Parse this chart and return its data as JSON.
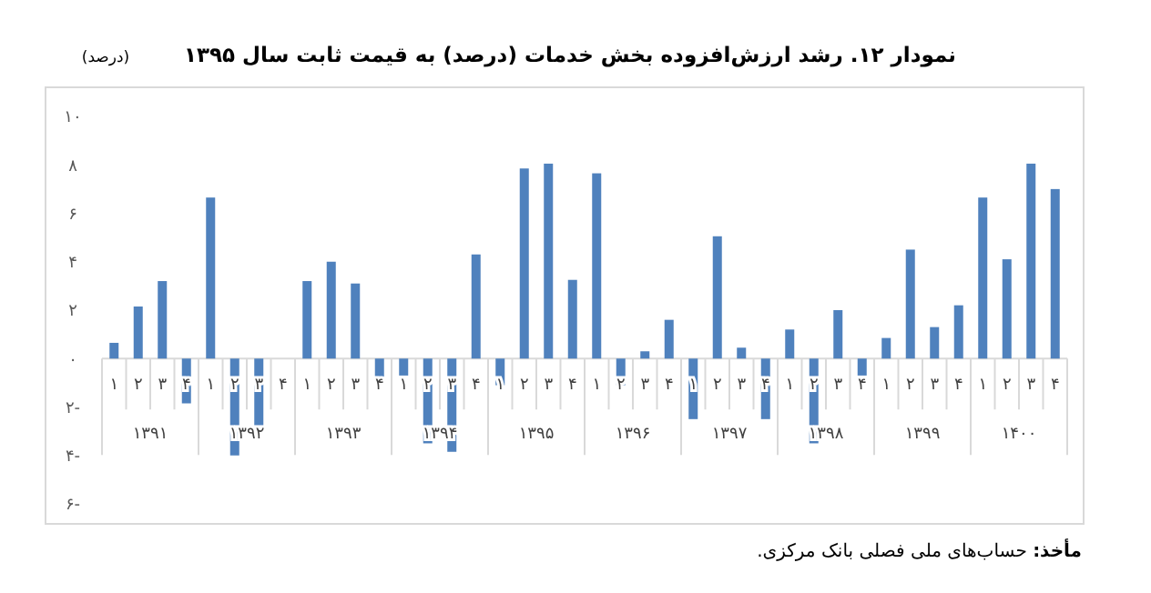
{
  "chart_data": {
    "type": "bar",
    "title": "نمودار ۱۲. رشد ارزش‌افزوده بخش خدمات (درصد) به قیمت ثابت سال ۱۳۹۵",
    "ylabel": "(درصد)",
    "categories": [
      "۱",
      "۲",
      "۳",
      "۴",
      "۱",
      "۲",
      "۳",
      "۴",
      "۱",
      "۲",
      "۳",
      "۴",
      "۱",
      "۲",
      "۳",
      "۴",
      "۱",
      "۲",
      "۳",
      "۴",
      "۱",
      "۲",
      "۳",
      "۴",
      "۱",
      "۲",
      "۳",
      "۴",
      "۱",
      "۲",
      "۳",
      "۴",
      "۱",
      "۲",
      "۳",
      "۴",
      "۱",
      "۲",
      "۳",
      "۴"
    ],
    "values": [
      0.65,
      2.15,
      3.2,
      -1.85,
      6.65,
      -4.0,
      -2.8,
      0.0,
      3.2,
      4.0,
      3.1,
      -0.85,
      -0.7,
      -3.5,
      -3.85,
      4.3,
      -1.1,
      7.85,
      8.05,
      3.25,
      7.65,
      -1.1,
      0.3,
      1.6,
      -2.5,
      5.05,
      0.45,
      -2.5,
      1.2,
      -3.5,
      2.0,
      -0.7,
      0.85,
      4.5,
      1.3,
      2.2,
      6.65,
      4.1,
      8.05,
      7.0
    ],
    "color": "#4f81bd",
    "ylim": [
      -6,
      10
    ],
    "yticks": [
      {
        "value": -6,
        "label": "۶-"
      },
      {
        "value": -4,
        "label": "۴-"
      },
      {
        "value": -2,
        "label": "۲-"
      },
      {
        "value": 0,
        "label": "۰"
      },
      {
        "value": 2,
        "label": "۲"
      },
      {
        "value": 4,
        "label": "۴"
      },
      {
        "value": 6,
        "label": "۶"
      },
      {
        "value": 8,
        "label": "۸"
      },
      {
        "value": 10,
        "label": "۱۰"
      }
    ],
    "grid": false,
    "annotations": [
      "۱۳۹۱",
      "۱۳۹۲",
      "۱۳۹۳",
      "۱۳۹۴",
      "۱۳۹۵",
      "۱۳۹۶",
      "۱۳۹۷",
      "۱۳۹۸",
      "۱۳۹۹",
      "۱۴۰۰",
      "مأخذ: حساب‌های ملی فصلی بانک مرکزی."
    ]
  }
}
